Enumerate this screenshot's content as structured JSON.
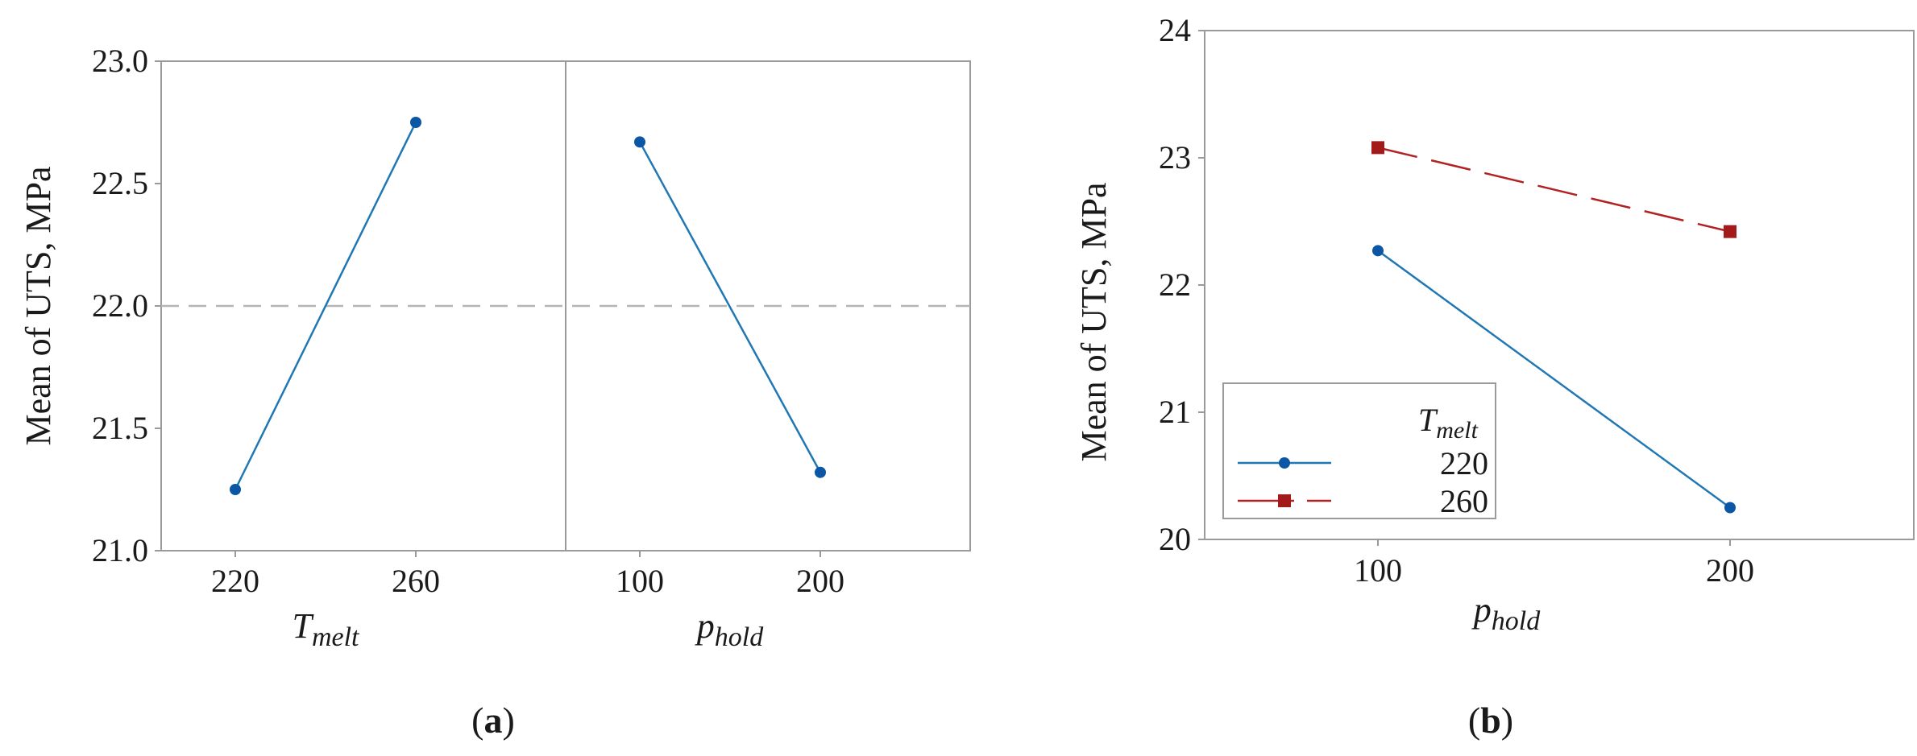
{
  "colors": {
    "series1": "#1f77b4",
    "marker1": "#0b57a6",
    "series2": "#b22222",
    "marker2": "#a31a1a",
    "axis": "#9a9a9a",
    "reference": "#b5b5b5"
  },
  "chart_data": [
    {
      "panel_label": "a",
      "type": "line",
      "ylabel": "Mean of UTS, MPa",
      "ylim": [
        21.0,
        23.0
      ],
      "yticks": [
        "21.0",
        "21.5",
        "22.0",
        "22.5",
        "23.0"
      ],
      "reference_line": 22.0,
      "grid": false,
      "panels": [
        {
          "xlabel_main": "T",
          "xlabel_sub": "melt",
          "categories": [
            "220",
            "260"
          ],
          "values": [
            21.25,
            22.75
          ]
        },
        {
          "xlabel_main": "p",
          "xlabel_sub": "hold",
          "categories": [
            "100",
            "200"
          ],
          "values": [
            22.67,
            21.32
          ]
        }
      ]
    },
    {
      "panel_label": "b",
      "type": "line",
      "ylabel": "Mean of UTS, MPa",
      "xlabel_main": "p",
      "xlabel_sub": "hold",
      "categories": [
        "100",
        "200"
      ],
      "ylim": [
        20,
        24
      ],
      "yticks": [
        "20",
        "21",
        "22",
        "23",
        "24"
      ],
      "grid": false,
      "legend": {
        "title_main": "T",
        "title_sub": "melt",
        "placement": "bottom-left"
      },
      "series": [
        {
          "name": "220",
          "values": [
            22.27,
            20.25
          ],
          "marker": "circle",
          "dash": "solid"
        },
        {
          "name": "260",
          "values": [
            23.08,
            22.42
          ],
          "marker": "square",
          "dash": "dashed"
        }
      ]
    }
  ]
}
